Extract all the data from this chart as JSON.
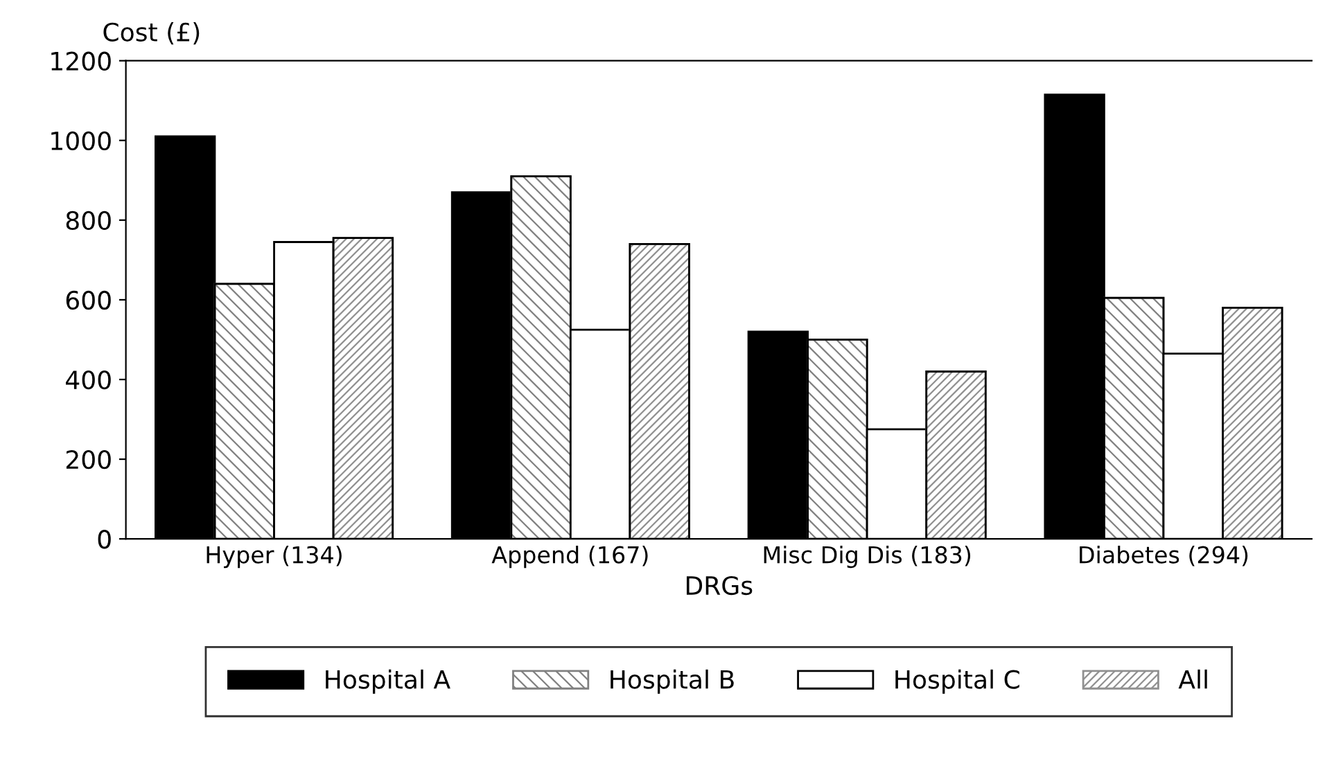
{
  "chart_data": {
    "type": "bar",
    "ylabel": "Cost (£)",
    "xlabel": "DRGs",
    "categories": [
      "Hyper (134)",
      "Append (167)",
      "Misc Dig Dis (183)",
      "Diabetes (294)"
    ],
    "series": [
      {
        "name": "Hospital A",
        "color": "#000000",
        "values": [
          1010,
          870,
          520,
          1115
        ]
      },
      {
        "name": "Hospital B",
        "color": "#808080",
        "values": [
          640,
          910,
          500,
          605
        ]
      },
      {
        "name": "Hospital C",
        "color": "#ffffff",
        "values": [
          745,
          525,
          275,
          465
        ]
      },
      {
        "name": "All",
        "color": "#909090",
        "values": [
          755,
          740,
          420,
          580
        ]
      }
    ],
    "ylim": [
      0,
      1200
    ],
    "yticks": [
      0,
      200,
      400,
      600,
      800,
      1000,
      1200
    ],
    "grid": false,
    "legend": "bottom"
  }
}
